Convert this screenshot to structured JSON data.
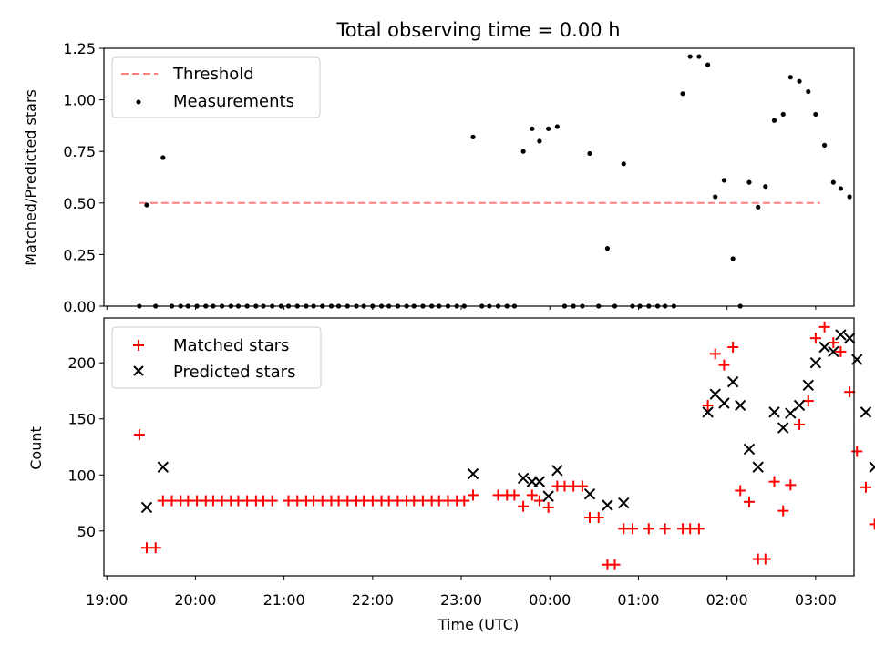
{
  "title": "Total observing time = 0.00 h",
  "xlabel": "Time (UTC)",
  "xticks": [
    "19:00",
    "20:00",
    "21:00",
    "22:00",
    "23:00",
    "00:00",
    "01:00",
    "02:00",
    "03:00"
  ],
  "colors": {
    "threshold": "#ff7f7f",
    "measurement": "#000000",
    "matched": "#ff0000",
    "predicted": "#000000"
  },
  "chart_data": [
    {
      "type": "scatter",
      "ylabel": "Matched/Predicted stars",
      "ylim": [
        0,
        1.25
      ],
      "yticks": [
        "0.00",
        "0.25",
        "0.50",
        "0.75",
        "1.00",
        "1.25"
      ],
      "xlim": [
        "18:58",
        "03:26"
      ],
      "legend": {
        "position": "top-left",
        "entries": [
          "Threshold",
          "Measurements"
        ]
      },
      "threshold": {
        "name": "Threshold",
        "value": 0.5,
        "x_start": "19:22",
        "x_end": "03:03"
      },
      "series": [
        {
          "name": "Measurements",
          "points": [
            [
              "19:22",
              0
            ],
            [
              "19:27",
              0.49
            ],
            [
              "19:33",
              0
            ],
            [
              "19:38",
              0.72
            ],
            [
              "19:44",
              0
            ],
            [
              "19:50",
              0
            ],
            [
              "19:55",
              0
            ],
            [
              "20:01",
              0
            ],
            [
              "20:07",
              0
            ],
            [
              "20:12",
              0
            ],
            [
              "20:18",
              0
            ],
            [
              "20:24",
              0
            ],
            [
              "20:29",
              0
            ],
            [
              "20:35",
              0
            ],
            [
              "20:41",
              0
            ],
            [
              "20:46",
              0
            ],
            [
              "20:52",
              0
            ],
            [
              "20:58",
              0
            ],
            [
              "21:03",
              0
            ],
            [
              "21:09",
              0
            ],
            [
              "21:15",
              0
            ],
            [
              "21:20",
              0
            ],
            [
              "21:26",
              0
            ],
            [
              "21:32",
              0
            ],
            [
              "21:37",
              0
            ],
            [
              "21:43",
              0
            ],
            [
              "21:49",
              0
            ],
            [
              "21:54",
              0
            ],
            [
              "22:00",
              0
            ],
            [
              "22:06",
              0
            ],
            [
              "22:11",
              0
            ],
            [
              "22:17",
              0
            ],
            [
              "22:23",
              0
            ],
            [
              "22:28",
              0
            ],
            [
              "22:34",
              0
            ],
            [
              "22:40",
              0
            ],
            [
              "22:45",
              0
            ],
            [
              "22:51",
              0
            ],
            [
              "22:57",
              0
            ],
            [
              "23:02",
              0
            ],
            [
              "23:08",
              0.82
            ],
            [
              "23:14",
              0
            ],
            [
              "23:19",
              0
            ],
            [
              "23:25",
              0
            ],
            [
              "23:31",
              0
            ],
            [
              "23:36",
              0
            ],
            [
              "23:42",
              0.75
            ],
            [
              "23:48",
              0.86
            ],
            [
              "23:53",
              0.8
            ],
            [
              "23:59",
              0.86
            ],
            [
              "00:05",
              0.87
            ],
            [
              "00:10",
              0
            ],
            [
              "00:16",
              0
            ],
            [
              "00:22",
              0
            ],
            [
              "00:27",
              0.74
            ],
            [
              "00:33",
              0
            ],
            [
              "00:39",
              0.28
            ],
            [
              "00:44",
              0
            ],
            [
              "00:50",
              0.69
            ],
            [
              "00:56",
              0
            ],
            [
              "01:01",
              0
            ],
            [
              "01:07",
              0
            ],
            [
              "01:13",
              0
            ],
            [
              "01:18",
              0
            ],
            [
              "01:24",
              0
            ],
            [
              "01:30",
              1.03
            ],
            [
              "01:35",
              1.21
            ],
            [
              "01:41",
              1.21
            ],
            [
              "01:47",
              1.17
            ],
            [
              "01:52",
              0.53
            ],
            [
              "01:58",
              0.61
            ],
            [
              "02:04",
              0.23
            ],
            [
              "02:09",
              0
            ],
            [
              "02:15",
              0.6
            ],
            [
              "02:21",
              0.48
            ],
            [
              "02:26",
              0.58
            ],
            [
              "02:32",
              0.9
            ],
            [
              "02:38",
              0.93
            ],
            [
              "02:43",
              1.11
            ],
            [
              "02:49",
              1.09
            ],
            [
              "02:55",
              1.04
            ],
            [
              "03:00",
              0.93
            ],
            [
              "03:06",
              0.78
            ],
            [
              "03:12",
              0.6
            ],
            [
              "03:17",
              0.57
            ],
            [
              "03:23",
              0.53
            ]
          ]
        }
      ]
    },
    {
      "type": "scatter",
      "ylabel": "Count",
      "ylim": [
        10,
        240
      ],
      "yticks": [
        "50",
        "100",
        "150",
        "200"
      ],
      "xlim": [
        "18:58",
        "03:26"
      ],
      "legend": {
        "position": "top-left",
        "entries": [
          "Matched stars",
          "Predicted stars"
        ]
      },
      "series": [
        {
          "name": "Matched stars",
          "marker": "+",
          "points": [
            [
              "19:22",
              136
            ],
            [
              "19:27",
              35
            ],
            [
              "19:33",
              35
            ],
            [
              "19:38",
              77
            ],
            [
              "19:44",
              77
            ],
            [
              "19:50",
              77
            ],
            [
              "19:55",
              77
            ],
            [
              "20:01",
              77
            ],
            [
              "20:07",
              77
            ],
            [
              "20:12",
              77
            ],
            [
              "20:18",
              77
            ],
            [
              "20:24",
              77
            ],
            [
              "20:29",
              77
            ],
            [
              "20:35",
              77
            ],
            [
              "20:41",
              77
            ],
            [
              "20:46",
              77
            ],
            [
              "20:52",
              77
            ],
            [
              "21:03",
              77
            ],
            [
              "21:09",
              77
            ],
            [
              "21:15",
              77
            ],
            [
              "21:20",
              77
            ],
            [
              "21:26",
              77
            ],
            [
              "21:32",
              77
            ],
            [
              "21:37",
              77
            ],
            [
              "21:43",
              77
            ],
            [
              "21:49",
              77
            ],
            [
              "21:54",
              77
            ],
            [
              "22:00",
              77
            ],
            [
              "22:06",
              77
            ],
            [
              "22:11",
              77
            ],
            [
              "22:17",
              77
            ],
            [
              "22:23",
              77
            ],
            [
              "22:28",
              77
            ],
            [
              "22:34",
              77
            ],
            [
              "22:40",
              77
            ],
            [
              "22:45",
              77
            ],
            [
              "22:51",
              77
            ],
            [
              "22:57",
              77
            ],
            [
              "23:02",
              77
            ],
            [
              "23:08",
              82
            ],
            [
              "23:25",
              82
            ],
            [
              "23:31",
              82
            ],
            [
              "23:36",
              82
            ],
            [
              "23:42",
              72
            ],
            [
              "23:48",
              82
            ],
            [
              "23:53",
              77
            ],
            [
              "23:59",
              71
            ],
            [
              "00:05",
              90
            ],
            [
              "00:10",
              90
            ],
            [
              "00:16",
              90
            ],
            [
              "00:22",
              90
            ],
            [
              "00:27",
              62
            ],
            [
              "00:33",
              62
            ],
            [
              "00:39",
              20
            ],
            [
              "00:44",
              20
            ],
            [
              "00:50",
              52
            ],
            [
              "00:56",
              52
            ],
            [
              "01:07",
              52
            ],
            [
              "01:18",
              52
            ],
            [
              "01:30",
              52
            ],
            [
              "01:35",
              52
            ],
            [
              "01:41",
              52
            ],
            [
              "01:47",
              162
            ],
            [
              "01:52",
              208
            ],
            [
              "01:58",
              198
            ],
            [
              "02:04",
              214
            ],
            [
              "02:09",
              86
            ],
            [
              "02:15",
              76
            ],
            [
              "02:21",
              25
            ],
            [
              "02:26",
              25
            ],
            [
              "02:32",
              94
            ],
            [
              "02:38",
              68
            ],
            [
              "02:43",
              91
            ],
            [
              "02:49",
              145
            ],
            [
              "02:55",
              166
            ],
            [
              "03:00",
              222
            ],
            [
              "03:06",
              232
            ],
            [
              "03:12",
              218
            ],
            [
              "03:17",
              210
            ],
            [
              "03:23",
              174
            ],
            [
              "03:28",
              121
            ],
            [
              "03:34",
              89
            ],
            [
              "03:40",
              56
            ]
          ]
        },
        {
          "name": "Predicted stars",
          "marker": "x",
          "points": [
            [
              "19:27",
              71
            ],
            [
              "19:38",
              107
            ],
            [
              "23:08",
              101
            ],
            [
              "23:42",
              97
            ],
            [
              "23:48",
              94
            ],
            [
              "23:53",
              94
            ],
            [
              "23:59",
              81
            ],
            [
              "00:05",
              104
            ],
            [
              "00:27",
              83
            ],
            [
              "00:39",
              73
            ],
            [
              "00:50",
              75
            ],
            [
              "01:47",
              156
            ],
            [
              "01:52",
              172
            ],
            [
              "01:58",
              164
            ],
            [
              "02:04",
              183
            ],
            [
              "02:09",
              162
            ],
            [
              "02:15",
              123
            ],
            [
              "02:21",
              107
            ],
            [
              "02:32",
              156
            ],
            [
              "02:38",
              142
            ],
            [
              "02:43",
              155
            ],
            [
              "02:49",
              162
            ],
            [
              "02:55",
              180
            ],
            [
              "03:00",
              200
            ],
            [
              "03:06",
              214
            ],
            [
              "03:12",
              210
            ],
            [
              "03:17",
              225
            ],
            [
              "03:23",
              222
            ],
            [
              "03:28",
              203
            ],
            [
              "03:34",
              156
            ],
            [
              "03:40",
              107
            ]
          ]
        }
      ]
    }
  ]
}
